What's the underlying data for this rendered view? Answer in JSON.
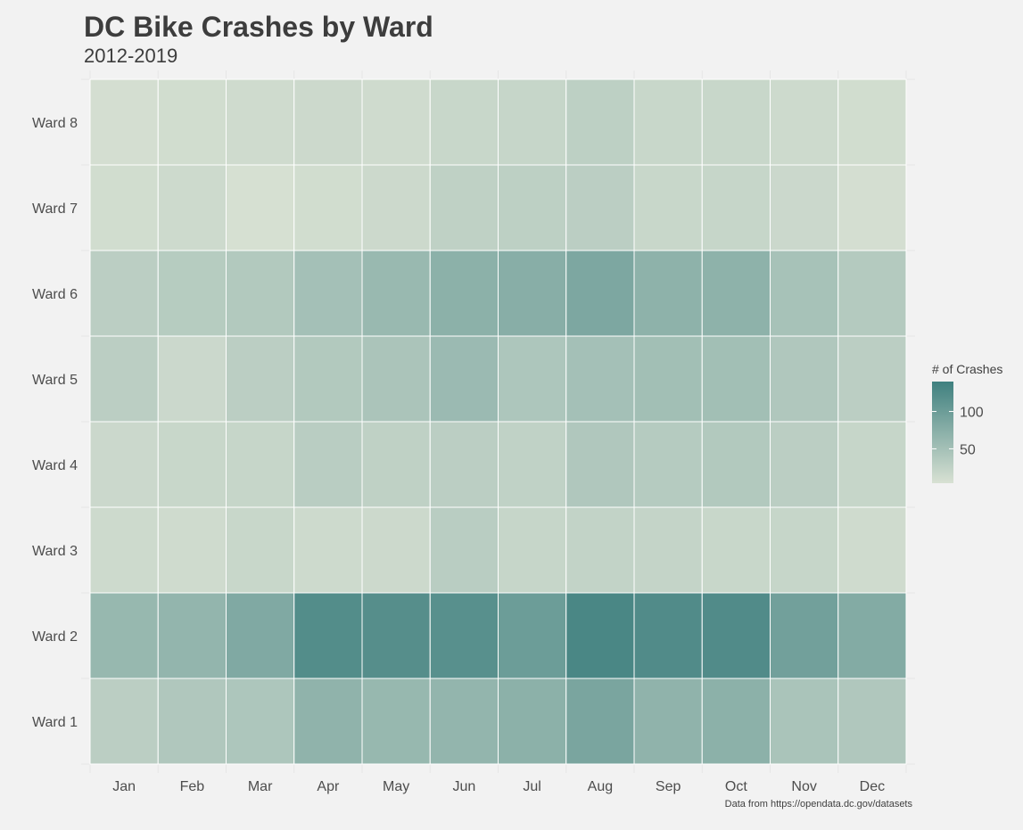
{
  "chart_data": {
    "type": "heatmap",
    "title": "DC Bike Crashes by Ward",
    "subtitle": "2012-2019",
    "caption": "Data from https://opendata.dc.gov/datasets",
    "x_categories": [
      "Jan",
      "Feb",
      "Mar",
      "Apr",
      "May",
      "Jun",
      "Jul",
      "Aug",
      "Sep",
      "Oct",
      "Nov",
      "Dec"
    ],
    "y_categories": [
      "Ward 8",
      "Ward 7",
      "Ward 6",
      "Ward 5",
      "Ward 4",
      "Ward 3",
      "Ward 2",
      "Ward 1"
    ],
    "values": [
      [
        8,
        10,
        12,
        15,
        12,
        18,
        20,
        28,
        18,
        18,
        14,
        10
      ],
      [
        10,
        14,
        6,
        10,
        15,
        26,
        28,
        30,
        18,
        20,
        16,
        8
      ],
      [
        30,
        34,
        38,
        50,
        60,
        72,
        75,
        85,
        70,
        70,
        48,
        36
      ],
      [
        30,
        16,
        30,
        38,
        44,
        58,
        42,
        50,
        52,
        52,
        40,
        30
      ],
      [
        16,
        18,
        20,
        32,
        26,
        30,
        25,
        40,
        35,
        38,
        30,
        20
      ],
      [
        14,
        12,
        18,
        14,
        15,
        32,
        20,
        24,
        22,
        18,
        20,
        12
      ],
      [
        62,
        65,
        82,
        122,
        120,
        118,
        100,
        130,
        124,
        124,
        95,
        80
      ],
      [
        30,
        40,
        42,
        68,
        62,
        65,
        72,
        88,
        68,
        72,
        45,
        40
      ]
    ],
    "legend": {
      "title": "# of Crashes",
      "breaks": [
        50,
        100
      ],
      "labels": [
        "50",
        "100"
      ],
      "min": 4,
      "max": 140,
      "color_low": "#d8e1d3",
      "color_high": "#3f807f"
    },
    "grid": true,
    "legend_position": "right"
  }
}
